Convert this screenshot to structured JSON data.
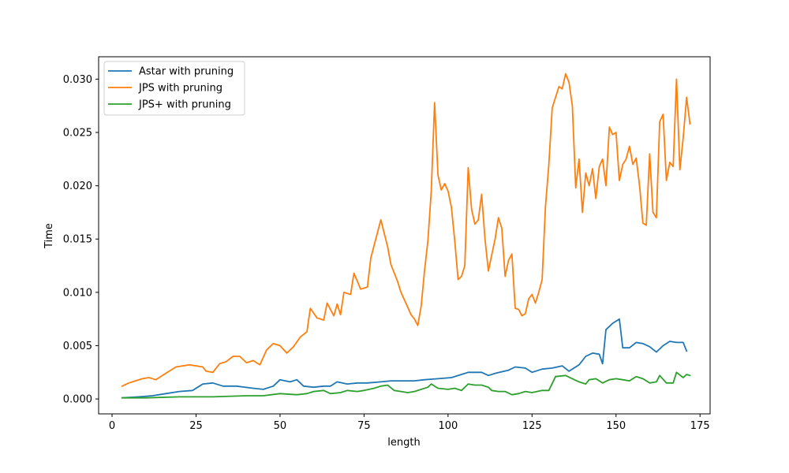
{
  "chart_data": {
    "type": "line",
    "title": "",
    "xlabel": "length",
    "ylabel": "Time",
    "xlim": [
      -4,
      178
    ],
    "ylim": [
      -0.0014,
      0.0321
    ],
    "xticks": [
      0,
      25,
      50,
      75,
      100,
      125,
      150,
      175
    ],
    "xtick_labels": [
      "0",
      "25",
      "50",
      "75",
      "100",
      "125",
      "150",
      "175"
    ],
    "yticks": [
      0.0,
      0.005,
      0.01,
      0.015,
      0.02,
      0.025,
      0.03
    ],
    "ytick_labels": [
      "0.000",
      "0.005",
      "0.010",
      "0.015",
      "0.020",
      "0.025",
      "0.030"
    ],
    "grid": false,
    "legend": "top-left",
    "series": [
      {
        "name": "Astar with pruning",
        "color": "#1f77b4",
        "points": [
          [
            3,
            0.0001
          ],
          [
            8,
            0.0002
          ],
          [
            12,
            0.0003
          ],
          [
            16,
            0.0005
          ],
          [
            20,
            0.0007
          ],
          [
            24,
            0.0008
          ],
          [
            27,
            0.0014
          ],
          [
            30,
            0.0015
          ],
          [
            33,
            0.0012
          ],
          [
            37,
            0.0012
          ],
          [
            42,
            0.001
          ],
          [
            45,
            0.0009
          ],
          [
            48,
            0.0012
          ],
          [
            50,
            0.0018
          ],
          [
            53,
            0.0016
          ],
          [
            55,
            0.0018
          ],
          [
            57,
            0.0012
          ],
          [
            60,
            0.0011
          ],
          [
            63,
            0.0012
          ],
          [
            65,
            0.0012
          ],
          [
            67,
            0.0016
          ],
          [
            70,
            0.0014
          ],
          [
            73,
            0.0015
          ],
          [
            76,
            0.0015
          ],
          [
            80,
            0.0016
          ],
          [
            83,
            0.0017
          ],
          [
            87,
            0.0017
          ],
          [
            90,
            0.0017
          ],
          [
            93,
            0.0018
          ],
          [
            97,
            0.0019
          ],
          [
            101,
            0.002
          ],
          [
            104,
            0.0023
          ],
          [
            106,
            0.0025
          ],
          [
            110,
            0.0025
          ],
          [
            112,
            0.0022
          ],
          [
            114,
            0.0024
          ],
          [
            118,
            0.0027
          ],
          [
            120,
            0.003
          ],
          [
            123,
            0.0029
          ],
          [
            125,
            0.0025
          ],
          [
            128,
            0.0028
          ],
          [
            131,
            0.0029
          ],
          [
            134,
            0.0031
          ],
          [
            136,
            0.0026
          ],
          [
            139,
            0.0032
          ],
          [
            141,
            0.004
          ],
          [
            143,
            0.0043
          ],
          [
            145,
            0.0042
          ],
          [
            146,
            0.0033
          ],
          [
            147,
            0.0065
          ],
          [
            149,
            0.0071
          ],
          [
            151,
            0.0075
          ],
          [
            152,
            0.0048
          ],
          [
            154,
            0.0048
          ],
          [
            156,
            0.0053
          ],
          [
            158,
            0.0052
          ],
          [
            160,
            0.0049
          ],
          [
            162,
            0.0044
          ],
          [
            164,
            0.005
          ],
          [
            166,
            0.0054
          ],
          [
            168,
            0.0053
          ],
          [
            170,
            0.0053
          ],
          [
            171,
            0.0045
          ]
        ]
      },
      {
        "name": "JPS with pruning",
        "color": "#ff7f0e",
        "points": [
          [
            3,
            0.0012
          ],
          [
            5,
            0.0015
          ],
          [
            7,
            0.0017
          ],
          [
            9,
            0.0019
          ],
          [
            11,
            0.002
          ],
          [
            13,
            0.0018
          ],
          [
            15,
            0.0022
          ],
          [
            17,
            0.0026
          ],
          [
            19,
            0.003
          ],
          [
            21,
            0.0031
          ],
          [
            23,
            0.0032
          ],
          [
            25,
            0.0031
          ],
          [
            27,
            0.003
          ],
          [
            28,
            0.0026
          ],
          [
            30,
            0.0025
          ],
          [
            32,
            0.0033
          ],
          [
            34,
            0.0035
          ],
          [
            36,
            0.004
          ],
          [
            38,
            0.004
          ],
          [
            40,
            0.0034
          ],
          [
            42,
            0.0036
          ],
          [
            44,
            0.0032
          ],
          [
            46,
            0.0046
          ],
          [
            48,
            0.0052
          ],
          [
            50,
            0.005
          ],
          [
            52,
            0.0043
          ],
          [
            54,
            0.0049
          ],
          [
            56,
            0.0058
          ],
          [
            58,
            0.0063
          ],
          [
            59,
            0.0085
          ],
          [
            61,
            0.0076
          ],
          [
            63,
            0.0074
          ],
          [
            64,
            0.009
          ],
          [
            66,
            0.0078
          ],
          [
            67,
            0.0089
          ],
          [
            68,
            0.0079
          ],
          [
            69,
            0.01
          ],
          [
            71,
            0.0098
          ],
          [
            72,
            0.0118
          ],
          [
            74,
            0.0103
          ],
          [
            76,
            0.0105
          ],
          [
            77,
            0.0132
          ],
          [
            79,
            0.0156
          ],
          [
            80,
            0.0168
          ],
          [
            82,
            0.0143
          ],
          [
            83,
            0.0126
          ],
          [
            85,
            0.011
          ],
          [
            86,
            0.01
          ],
          [
            88,
            0.0086
          ],
          [
            89,
            0.0079
          ],
          [
            90,
            0.0075
          ],
          [
            91,
            0.0069
          ],
          [
            92,
            0.0087
          ],
          [
            93,
            0.012
          ],
          [
            94,
            0.0148
          ],
          [
            95,
            0.0195
          ],
          [
            96,
            0.0278
          ],
          [
            97,
            0.021
          ],
          [
            98,
            0.0196
          ],
          [
            99,
            0.0202
          ],
          [
            100,
            0.0195
          ],
          [
            101,
            0.018
          ],
          [
            102,
            0.0148
          ],
          [
            103,
            0.0112
          ],
          [
            104,
            0.0115
          ],
          [
            105,
            0.0125
          ],
          [
            106,
            0.0217
          ],
          [
            107,
            0.0178
          ],
          [
            108,
            0.0164
          ],
          [
            109,
            0.0168
          ],
          [
            110,
            0.0192
          ],
          [
            111,
            0.015
          ],
          [
            112,
            0.012
          ],
          [
            113,
            0.0135
          ],
          [
            114,
            0.015
          ],
          [
            115,
            0.017
          ],
          [
            116,
            0.016
          ],
          [
            117,
            0.0115
          ],
          [
            118,
            0.013
          ],
          [
            119,
            0.0136
          ],
          [
            120,
            0.0085
          ],
          [
            121,
            0.0084
          ],
          [
            122,
            0.0078
          ],
          [
            123,
            0.008
          ],
          [
            124,
            0.0094
          ],
          [
            125,
            0.0098
          ],
          [
            126,
            0.009
          ],
          [
            127,
            0.01
          ],
          [
            128,
            0.0112
          ],
          [
            129,
            0.018
          ],
          [
            130,
            0.022
          ],
          [
            131,
            0.0273
          ],
          [
            133,
            0.0293
          ],
          [
            134,
            0.0291
          ],
          [
            135,
            0.0305
          ],
          [
            136,
            0.0297
          ],
          [
            137,
            0.0275
          ],
          [
            138,
            0.0198
          ],
          [
            139,
            0.0225
          ],
          [
            140,
            0.0175
          ],
          [
            141,
            0.0212
          ],
          [
            142,
            0.02
          ],
          [
            143,
            0.0216
          ],
          [
            144,
            0.0188
          ],
          [
            145,
            0.0218
          ],
          [
            146,
            0.0225
          ],
          [
            147,
            0.02
          ],
          [
            148,
            0.0255
          ],
          [
            149,
            0.0248
          ],
          [
            150,
            0.025
          ],
          [
            151,
            0.0205
          ],
          [
            152,
            0.022
          ],
          [
            153,
            0.0225
          ],
          [
            154,
            0.0237
          ],
          [
            155,
            0.022
          ],
          [
            156,
            0.0226
          ],
          [
            157,
            0.02
          ],
          [
            158,
            0.0165
          ],
          [
            159,
            0.0163
          ],
          [
            160,
            0.023
          ],
          [
            161,
            0.0175
          ],
          [
            162,
            0.017
          ],
          [
            163,
            0.026
          ],
          [
            164,
            0.0267
          ],
          [
            165,
            0.0205
          ],
          [
            166,
            0.0222
          ],
          [
            167,
            0.0218
          ],
          [
            168,
            0.03
          ],
          [
            169,
            0.0215
          ],
          [
            170,
            0.0245
          ],
          [
            171,
            0.0283
          ],
          [
            172,
            0.0258
          ]
        ]
      },
      {
        "name": "JPS+ with pruning",
        "color": "#2ca02c",
        "points": [
          [
            3,
            0.0001
          ],
          [
            10,
            0.0001
          ],
          [
            20,
            0.0002
          ],
          [
            30,
            0.0002
          ],
          [
            40,
            0.0003
          ],
          [
            45,
            0.0003
          ],
          [
            50,
            0.0005
          ],
          [
            55,
            0.0004
          ],
          [
            58,
            0.0005
          ],
          [
            60,
            0.0007
          ],
          [
            63,
            0.0008
          ],
          [
            65,
            0.0005
          ],
          [
            68,
            0.0006
          ],
          [
            70,
            0.0008
          ],
          [
            73,
            0.0007
          ],
          [
            75,
            0.0008
          ],
          [
            78,
            0.001
          ],
          [
            80,
            0.0012
          ],
          [
            82,
            0.0013
          ],
          [
            84,
            0.0008
          ],
          [
            86,
            0.0007
          ],
          [
            88,
            0.0006
          ],
          [
            90,
            0.0007
          ],
          [
            92,
            0.0009
          ],
          [
            94,
            0.0011
          ],
          [
            95,
            0.0014
          ],
          [
            97,
            0.001
          ],
          [
            100,
            0.0009
          ],
          [
            102,
            0.001
          ],
          [
            104,
            0.0008
          ],
          [
            106,
            0.0014
          ],
          [
            108,
            0.0013
          ],
          [
            110,
            0.0013
          ],
          [
            112,
            0.0011
          ],
          [
            113,
            0.0008
          ],
          [
            115,
            0.0007
          ],
          [
            117,
            0.0007
          ],
          [
            119,
            0.0004
          ],
          [
            121,
            0.0005
          ],
          [
            123,
            0.0007
          ],
          [
            125,
            0.0006
          ],
          [
            128,
            0.0008
          ],
          [
            130,
            0.0008
          ],
          [
            132,
            0.0021
          ],
          [
            135,
            0.0022
          ],
          [
            137,
            0.0019
          ],
          [
            139,
            0.0016
          ],
          [
            141,
            0.0014
          ],
          [
            142,
            0.0018
          ],
          [
            144,
            0.0019
          ],
          [
            146,
            0.0015
          ],
          [
            148,
            0.0018
          ],
          [
            150,
            0.0019
          ],
          [
            152,
            0.0018
          ],
          [
            154,
            0.0017
          ],
          [
            156,
            0.0021
          ],
          [
            158,
            0.0019
          ],
          [
            160,
            0.0015
          ],
          [
            162,
            0.0016
          ],
          [
            163,
            0.0022
          ],
          [
            165,
            0.0015
          ],
          [
            167,
            0.0015
          ],
          [
            168,
            0.0025
          ],
          [
            170,
            0.002
          ],
          [
            171,
            0.0023
          ],
          [
            172,
            0.0022
          ]
        ]
      }
    ]
  }
}
